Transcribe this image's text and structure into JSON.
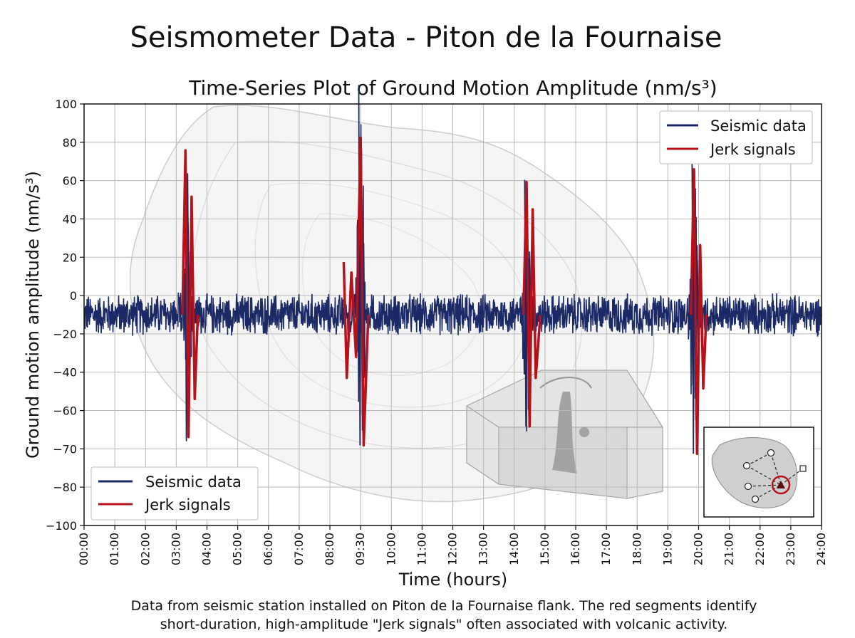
{
  "title": "Seismometer Data - Piton de la Fournaise",
  "subtitle": "Time-Series Plot of Ground Motion Amplitude (nm/s³)",
  "caption_line1": "Data from seismic station installed on Piton de la Fournaise flank. The red segments identify",
  "caption_line2": "short-duration, high-amplitude \"Jerk signals\" often associated with volcanic activity.",
  "colors": {
    "seismic": "#1b2a66",
    "jerk": "#b5121b",
    "grid": "#b8b8b8",
    "map": "#c8c8c8"
  },
  "chart_data": {
    "type": "line",
    "xlabel": "Time (hours)",
    "ylabel": "Ground motion amplitude (nm/s³)",
    "xlim": [
      0,
      24
    ],
    "ylim": [
      -100,
      100
    ],
    "grid": true,
    "x_tick_labels": [
      "00:00",
      "01:00",
      "02:00",
      "03:00",
      "04:00",
      "05:00",
      "06:00",
      "07:00",
      "08:00",
      "09:30",
      "10:00",
      "11:00",
      "12:00",
      "13:00",
      "14:00",
      "15:00",
      "16:00",
      "17:00",
      "18:00",
      "19:00",
      "20:00",
      "21:00",
      "22:00",
      "23:00",
      "24:00"
    ],
    "y_tick_labels": [
      "100",
      "80",
      "60",
      "40",
      "20",
      "0",
      "−20",
      "−40",
      "−60",
      "−70",
      "−80",
      "−100"
    ],
    "y_tick_values": [
      100,
      80,
      60,
      40,
      20,
      0,
      -20,
      -40,
      -60,
      -70,
      -80,
      -100
    ],
    "noise_amplitude": 10,
    "series": [
      {
        "name": "Seismic data",
        "bursts": [
          {
            "t": 3.35,
            "peaks": [
              78,
              -60,
              56,
              -45,
              30,
              -20
            ]
          },
          {
            "t": 9.0,
            "peaks": [
              109,
              -62,
              84,
              -55,
              34,
              -30
            ]
          },
          {
            "t": 14.4,
            "peaks": [
              64,
              -53,
              60,
              -45,
              30,
              -20
            ]
          },
          {
            "t": 19.85,
            "peaks": [
              72,
              -66,
              68,
              -50,
              33,
              -25
            ]
          }
        ]
      },
      {
        "name": "Jerk signals",
        "segments": [
          {
            "t": [
              3.2,
              3.3,
              3.4,
              3.5,
              3.6,
              3.7
            ],
            "v": [
              0,
              78,
              -58,
              56,
              -40,
              0
            ]
          },
          {
            "t": [
              8.45,
              8.55,
              8.7,
              8.85,
              9.0,
              9.1,
              9.25
            ],
            "v": [
              25,
              -30,
              20,
              -20,
              84,
              -62,
              0
            ]
          },
          {
            "t": [
              14.3,
              14.4,
              14.5,
              14.6,
              14.7,
              14.85
            ],
            "v": [
              0,
              63,
              -53,
              50,
              -30,
              0
            ]
          },
          {
            "t": [
              19.75,
              19.85,
              19.95,
              20.05,
              20.15,
              20.25
            ],
            "v": [
              0,
              69,
              -66,
              33,
              -35,
              0
            ]
          }
        ]
      }
    ],
    "legends": [
      {
        "position": "top-right",
        "entries": [
          "Seismic data",
          "Jerk signals"
        ]
      },
      {
        "position": "bottom-left",
        "entries": [
          "Seismic data",
          "Jerk signals"
        ]
      }
    ]
  }
}
